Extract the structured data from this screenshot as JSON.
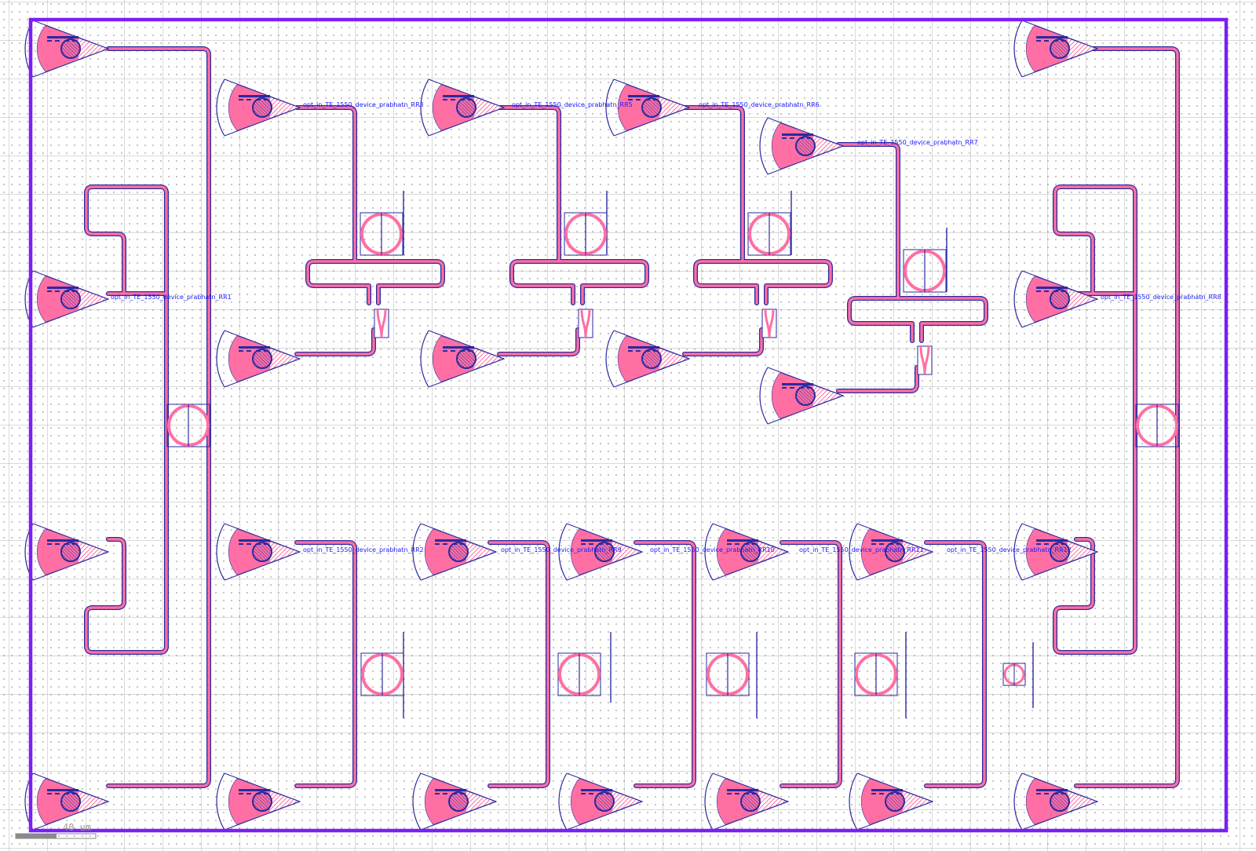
{
  "colors": {
    "boundary": "#7b1ff5",
    "waveguide_fill": "#ff6fa3",
    "waveguide_outline": "#2a2aa0",
    "label": "#1a1aff",
    "grid_dot": "#b8b8b8"
  },
  "labels": {
    "rr1": "opt_in_TE_1550_device_prabhatn_RR1",
    "rr2": "opt_in_TE_1550_device_prabhatn_RR2",
    "rr3": "opt_in_TE_1550_device_prabhatn_RR3",
    "rr5": "opt_in_TE_1550_device_prabhatn_RR5",
    "rr6": "opt_in_TE_1550_device_prabhatn_RR6",
    "rr7": "opt_in_TE_1550_device_prabhatn_RR7",
    "rr8": "opt_in_TE_1550_device_prabhatn_RR8",
    "rr9": "opt_in_TE_1550_device_prabhatn_RR9",
    "rr10": "opt_in_TE_1550_device_prabhatn_RR10",
    "rr11": "opt_in_TE_1550_device_prabhatn_RR11",
    "rr12": "opt_in_TE_1550_device_prabhatn_RR12"
  },
  "scale_bar": {
    "text": "40 um"
  }
}
